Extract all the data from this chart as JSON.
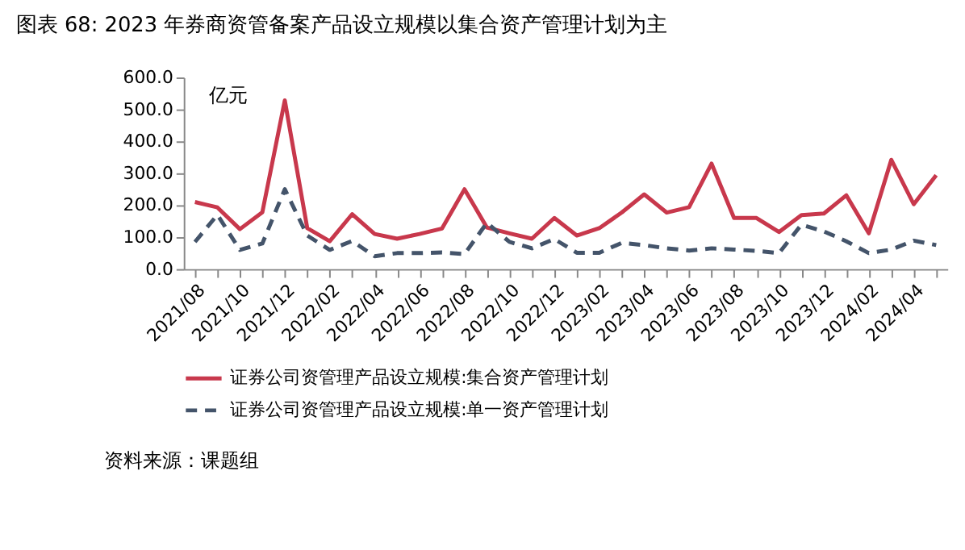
{
  "chart_data": {
    "type": "line",
    "title": "图表 68: 2023 年券商资管备案产品设立规模以集合资产管理计划为主",
    "ylabel": "亿元",
    "categories": [
      "2021/08",
      null,
      "2021/10",
      null,
      "2021/12",
      null,
      "2022/02",
      null,
      "2022/04",
      null,
      "2022/06",
      null,
      "2022/08",
      null,
      "2022/10",
      null,
      "2022/12",
      null,
      "2023/02",
      null,
      "2023/04",
      null,
      "2023/06",
      null,
      "2023/08",
      null,
      "2023/10",
      null,
      "2023/12",
      null,
      "2024/02",
      null,
      "2024/04",
      null
    ],
    "series": [
      {
        "name": "证券公司资管理产品设立规模:集合资产管理计划",
        "color": "#c8384c",
        "line_style": "solid",
        "values": [
          210,
          193,
          125,
          178,
          528,
          128,
          87,
          172,
          110,
          95,
          110,
          127,
          250,
          130,
          112,
          95,
          160,
          105,
          128,
          177,
          234,
          177,
          194,
          330,
          160,
          160,
          116,
          169,
          174,
          231,
          112,
          342,
          203,
          294
        ]
      },
      {
        "name": "证券公司资管理产品设立规模:单一资产管理计划",
        "color": "#44546a",
        "line_style": "dashed",
        "values": [
          85,
          170,
          60,
          80,
          250,
          105,
          60,
          88,
          40,
          50,
          50,
          52,
          47,
          145,
          85,
          65,
          94,
          51,
          51,
          82,
          75,
          65,
          58,
          65,
          61,
          57,
          50,
          139,
          118,
          87,
          50,
          61,
          89,
          75
        ]
      }
    ],
    "ylim": [
      0,
      600
    ],
    "yticks": [
      {
        "value": 0,
        "label": "0.0"
      },
      {
        "value": 100,
        "label": "100.0"
      },
      {
        "value": 200,
        "label": "200.0"
      },
      {
        "value": 300,
        "label": "300.0"
      },
      {
        "value": 400,
        "label": "400.0"
      },
      {
        "value": 500,
        "label": "500.0"
      },
      {
        "value": 600,
        "label": "600.0"
      }
    ],
    "grid": false,
    "legend": "bottom",
    "annotations": [
      "资料来源：课题组"
    ]
  }
}
